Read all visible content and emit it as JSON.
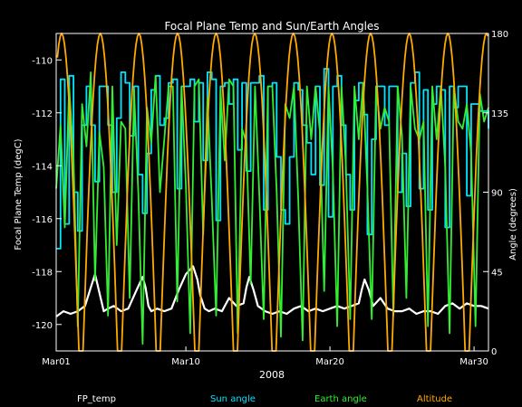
{
  "chart_data": {
    "type": "line",
    "title": "Focal Plane Temp and Sun/Earth Angles",
    "xlabel": "2008",
    "ylabel_left": "Focal Plane Temp (degC)",
    "ylabel_right": "Angle (degrees)",
    "x_tick_labels": [
      "Mar01",
      "Mar10",
      "Mar20",
      "Mar30"
    ],
    "x_tick_days": [
      1,
      10,
      20,
      30
    ],
    "xlim": [
      1,
      31
    ],
    "y_left_ticks": [
      -110,
      -112,
      -114,
      -116,
      -118,
      -120
    ],
    "ylim_left": [
      -121,
      -109
    ],
    "y_right_ticks": [
      180,
      135,
      90,
      45,
      0
    ],
    "ylim_right": [
      0,
      180
    ],
    "grid": false,
    "legend_position": "bottom",
    "series": [
      {
        "name": "FP_temp",
        "axis": "left",
        "color": "#ffffff",
        "x": [
          1.0,
          1.5,
          2.0,
          2.5,
          3.0,
          3.4,
          3.7,
          4.0,
          4.3,
          4.6,
          5.0,
          5.5,
          6.0,
          6.5,
          7.0,
          7.2,
          7.4,
          7.6,
          8.0,
          8.5,
          9.0,
          9.5,
          10.0,
          10.5,
          10.8,
          11.0,
          11.3,
          11.6,
          12.0,
          12.5,
          13.0,
          13.5,
          14.0,
          14.2,
          14.4,
          14.7,
          15.0,
          15.5,
          16.0,
          16.5,
          17.0,
          17.5,
          18.0,
          18.5,
          19.0,
          19.5,
          20.0,
          20.5,
          21.0,
          21.5,
          22.0,
          22.2,
          22.4,
          22.7,
          23.0,
          23.5,
          24.0,
          24.5,
          25.0,
          25.5,
          26.0,
          26.5,
          27.0,
          27.5,
          28.0,
          28.5,
          29.0,
          29.5,
          30.0,
          30.5,
          31.0
        ],
        "y": [
          -119.7,
          -119.5,
          -119.6,
          -119.5,
          -119.3,
          -118.6,
          -118.1,
          -118.8,
          -119.5,
          -119.4,
          -119.3,
          -119.5,
          -119.4,
          -118.8,
          -118.2,
          -118.6,
          -119.3,
          -119.5,
          -119.4,
          -119.5,
          -119.4,
          -118.7,
          -118.1,
          -117.8,
          -118.3,
          -118.9,
          -119.4,
          -119.5,
          -119.4,
          -119.5,
          -119.0,
          -119.3,
          -119.2,
          -118.6,
          -118.2,
          -118.7,
          -119.3,
          -119.5,
          -119.6,
          -119.5,
          -119.6,
          -119.4,
          -119.3,
          -119.5,
          -119.4,
          -119.5,
          -119.4,
          -119.3,
          -119.4,
          -119.3,
          -119.2,
          -118.7,
          -118.3,
          -118.7,
          -119.3,
          -119.0,
          -119.4,
          -119.5,
          -119.5,
          -119.4,
          -119.6,
          -119.5,
          -119.5,
          -119.6,
          -119.3,
          -119.2,
          -119.4,
          -119.2,
          -119.3,
          -119.3,
          -119.4
        ]
      },
      {
        "name": "Sun angle",
        "axis": "right",
        "color": "#00e5ff",
        "x": [
          1.0,
          1.3,
          1.6,
          1.9,
          2.2,
          2.5,
          2.8,
          3.1,
          3.4,
          3.7,
          4.0,
          4.3,
          4.6,
          4.9,
          5.2,
          5.5,
          5.8,
          6.1,
          6.4,
          6.7,
          7.0,
          7.3,
          7.6,
          7.9,
          8.2,
          8.5,
          8.8,
          9.1,
          9.4,
          9.7,
          10.0,
          10.3,
          10.6,
          10.9,
          11.2,
          11.5,
          11.8,
          12.1,
          12.4,
          12.7,
          13.0,
          13.3,
          13.6,
          13.9,
          14.2,
          14.5,
          14.8,
          15.1,
          15.4,
          15.7,
          16.0,
          16.3,
          16.6,
          16.9,
          17.2,
          17.5,
          17.8,
          18.1,
          18.4,
          18.7,
          19.0,
          19.3,
          19.6,
          19.9,
          20.2,
          20.5,
          20.8,
          21.1,
          21.4,
          21.7,
          22.0,
          22.3,
          22.6,
          22.9,
          23.2,
          23.5,
          23.8,
          24.1,
          24.4,
          24.7,
          25.0,
          25.3,
          25.6,
          25.9,
          26.2,
          26.5,
          26.8,
          27.1,
          27.4,
          27.7,
          28.0,
          28.3,
          28.6,
          28.9,
          29.2,
          29.5,
          29.8,
          30.1,
          30.4,
          30.7,
          31.0
        ],
        "y": [
          58,
          154,
          72,
          156,
          90,
          68,
          128,
          150,
          128,
          96,
          150,
          150,
          128,
          90,
          132,
          158,
          152,
          122,
          150,
          100,
          78,
          112,
          148,
          156,
          128,
          132,
          152,
          154,
          92,
          150,
          150,
          154,
          130,
          152,
          108,
          158,
          154,
          74,
          150,
          152,
          140,
          154,
          114,
          152,
          102,
          152,
          152,
          156,
          80,
          150,
          152,
          110,
          80,
          72,
          110,
          152,
          148,
          128,
          118,
          100,
          150,
          94,
          160,
          76,
          150,
          156,
          128,
          100,
          80,
          142,
          152,
          134,
          66,
          120,
          150,
          150,
          128,
          150,
          150,
          90,
          112,
          82,
          152,
          158,
          92,
          148,
          80,
          140,
          150,
          148,
          70,
          150,
          138,
          150,
          150,
          88,
          140,
          140,
          136,
          136,
          126
        ]
      },
      {
        "name": "Earth angle",
        "axis": "right",
        "color": "#33ee33",
        "x": [
          1.0,
          1.3,
          1.6,
          1.9,
          2.2,
          2.5,
          2.8,
          3.1,
          3.4,
          3.7,
          4.0,
          4.3,
          4.6,
          4.9,
          5.2,
          5.5,
          5.8,
          6.1,
          6.4,
          6.7,
          7.0,
          7.3,
          7.6,
          7.9,
          8.2,
          8.5,
          8.8,
          9.1,
          9.4,
          9.7,
          10.0,
          10.3,
          10.6,
          10.9,
          11.2,
          11.5,
          11.8,
          12.1,
          12.4,
          12.7,
          13.0,
          13.3,
          13.6,
          13.9,
          14.2,
          14.5,
          14.8,
          15.1,
          15.4,
          15.7,
          16.0,
          16.3,
          16.6,
          16.9,
          17.2,
          17.5,
          17.8,
          18.1,
          18.4,
          18.7,
          19.0,
          19.3,
          19.6,
          19.9,
          20.2,
          20.5,
          20.8,
          21.1,
          21.4,
          21.7,
          22.0,
          22.3,
          22.6,
          22.9,
          23.2,
          23.5,
          23.8,
          24.1,
          24.4,
          24.7,
          25.0,
          25.3,
          25.6,
          25.9,
          26.2,
          26.5,
          26.8,
          27.1,
          27.4,
          27.7,
          28.0,
          28.3,
          28.6,
          28.9,
          29.2,
          29.5,
          29.8,
          30.1,
          30.4,
          30.7,
          31.0
        ],
        "y": [
          92,
          128,
          70,
          150,
          110,
          14,
          140,
          116,
          158,
          40,
          124,
          104,
          20,
          150,
          60,
          130,
          126,
          30,
          148,
          90,
          4,
          138,
          118,
          156,
          90,
          120,
          150,
          150,
          28,
          150,
          94,
          10,
          150,
          154,
          66,
          144,
          86,
          20,
          148,
          108,
          154,
          150,
          10,
          126,
          118,
          38,
          150,
          88,
          18,
          150,
          150,
          90,
          8,
          140,
          132,
          150,
          86,
          6,
          150,
          120,
          150,
          124,
          34,
          150,
          102,
          14,
          150,
          106,
          18,
          150,
          120,
          152,
          92,
          18,
          150,
          126,
          138,
          130,
          20,
          150,
          122,
          30,
          150,
          126,
          120,
          130,
          14,
          150,
          120,
          150,
          104,
          10,
          150,
          130,
          126,
          140,
          112,
          14,
          146,
          130,
          138
        ]
      },
      {
        "name": "Altitude",
        "axis": "right",
        "color": "#ffaa00",
        "x": [
          1.38,
          4.06,
          6.74,
          9.42,
          12.1,
          14.78,
          17.46,
          20.14,
          22.82,
          25.5,
          28.18,
          30.86
        ],
        "y": [
          180,
          180,
          180,
          180,
          180,
          180,
          180,
          180,
          180,
          180,
          180,
          180
        ],
        "minimum": 0
      }
    ]
  }
}
